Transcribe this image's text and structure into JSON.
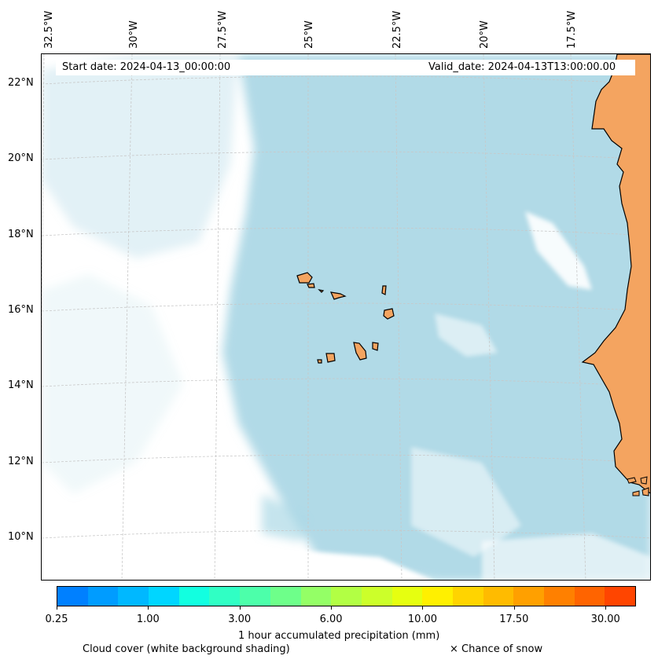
{
  "map": {
    "header": {
      "start": "Start date: 2024-04-13_00:00:00",
      "valid": "Valid_date: 2024-04-13T13:00:00.00"
    },
    "lon_labels": [
      "32.5°W",
      "30°W",
      "27.5°W",
      "25°W",
      "22.5°W",
      "20°W",
      "17.5°W"
    ],
    "lat_labels": [
      "22°N",
      "20°N",
      "18°N",
      "16°N",
      "14°N",
      "12°N",
      "10°N"
    ],
    "colorbar": {
      "ticks": [
        "0.25",
        "1.00",
        "3.00",
        "6.00",
        "10.00",
        "17.50",
        "30.00"
      ],
      "colors": [
        "#0080ff",
        "#009cff",
        "#00b8ff",
        "#00d6ff",
        "#12ffe0",
        "#30ffc4",
        "#4cffaa",
        "#6eff8a",
        "#94ff66",
        "#b2ff44",
        "#ccff2a",
        "#e6ff10",
        "#fff000",
        "#ffd400",
        "#ffbb00",
        "#ffa000",
        "#ff8000",
        "#ff6400",
        "#ff4500"
      ],
      "label": "1 hour accumulated precipitation (mm)"
    },
    "legend": {
      "cloud": "Cloud cover (white background shading)",
      "snow": "× Chance of snow"
    },
    "colors": {
      "cloud": "#add8e6",
      "land": "#f4a460",
      "grid": "#c8c8c8"
    }
  }
}
